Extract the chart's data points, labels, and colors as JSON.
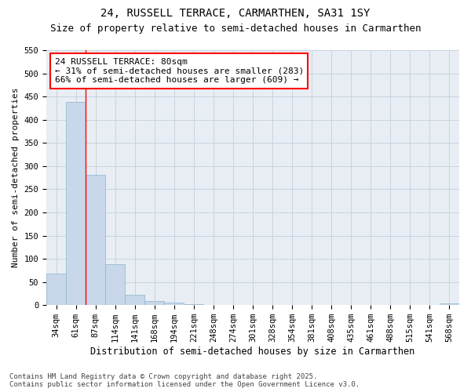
{
  "title": "24, RUSSELL TERRACE, CARMARTHEN, SA31 1SY",
  "subtitle": "Size of property relative to semi-detached houses in Carmarthen",
  "xlabel": "Distribution of semi-detached houses by size in Carmarthen",
  "ylabel": "Number of semi-detached properties",
  "categories": [
    "34sqm",
    "61sqm",
    "87sqm",
    "114sqm",
    "141sqm",
    "168sqm",
    "194sqm",
    "221sqm",
    "248sqm",
    "274sqm",
    "301sqm",
    "328sqm",
    "354sqm",
    "381sqm",
    "408sqm",
    "435sqm",
    "461sqm",
    "488sqm",
    "515sqm",
    "541sqm",
    "568sqm"
  ],
  "values": [
    68,
    438,
    281,
    88,
    22,
    9,
    5,
    2,
    0,
    0,
    0,
    0,
    0,
    0,
    0,
    0,
    0,
    0,
    0,
    0,
    4
  ],
  "bar_color": "#c8d8ea",
  "bar_edge_color": "#8ab4cc",
  "grid_color": "#c8d4e0",
  "background_color": "#e8eef4",
  "red_line_x": 1.5,
  "annotation_text_line1": "24 RUSSELL TERRACE: 80sqm",
  "annotation_text_line2": "← 31% of semi-detached houses are smaller (283)",
  "annotation_text_line3": "66% of semi-detached houses are larger (609) →",
  "ylim": [
    0,
    550
  ],
  "yticks": [
    0,
    50,
    100,
    150,
    200,
    250,
    300,
    350,
    400,
    450,
    500,
    550
  ],
  "footnote": "Contains HM Land Registry data © Crown copyright and database right 2025.\nContains public sector information licensed under the Open Government Licence v3.0.",
  "title_fontsize": 10,
  "subtitle_fontsize": 9,
  "xlabel_fontsize": 8.5,
  "ylabel_fontsize": 8,
  "tick_fontsize": 7.5,
  "annotation_fontsize": 8,
  "footnote_fontsize": 6.5
}
